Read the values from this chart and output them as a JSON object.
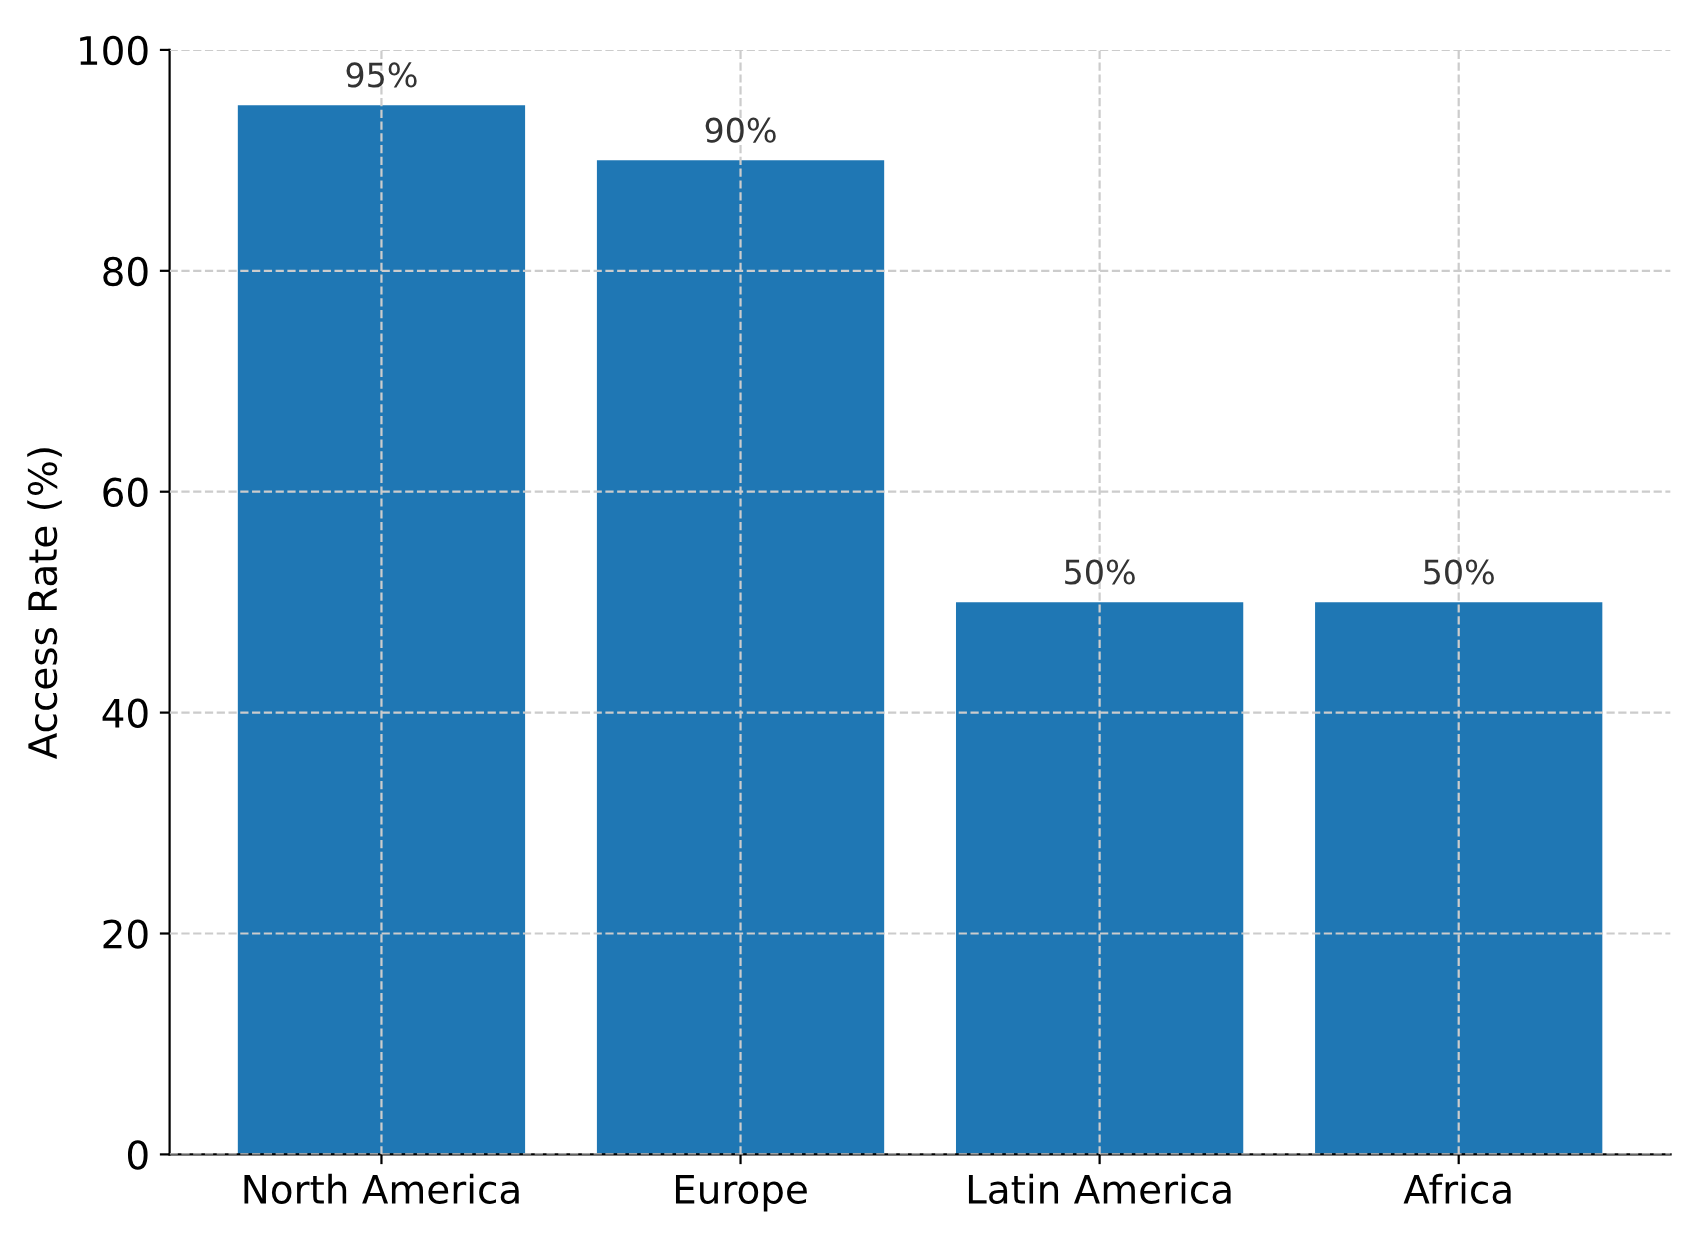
{
  "chart_data": {
    "type": "bar",
    "ylabel": "Access Rate (%)",
    "categories": [
      "North America",
      "Europe",
      "Latin America",
      "Africa"
    ],
    "values": [
      95,
      90,
      50,
      50
    ],
    "color": "#1f77b4",
    "value_labels": [
      "95%",
      "90%",
      "50%",
      "50%"
    ],
    "ylim": [
      0,
      100
    ],
    "yticks": [
      0,
      20,
      40,
      60,
      80,
      100
    ],
    "grid": true
  }
}
